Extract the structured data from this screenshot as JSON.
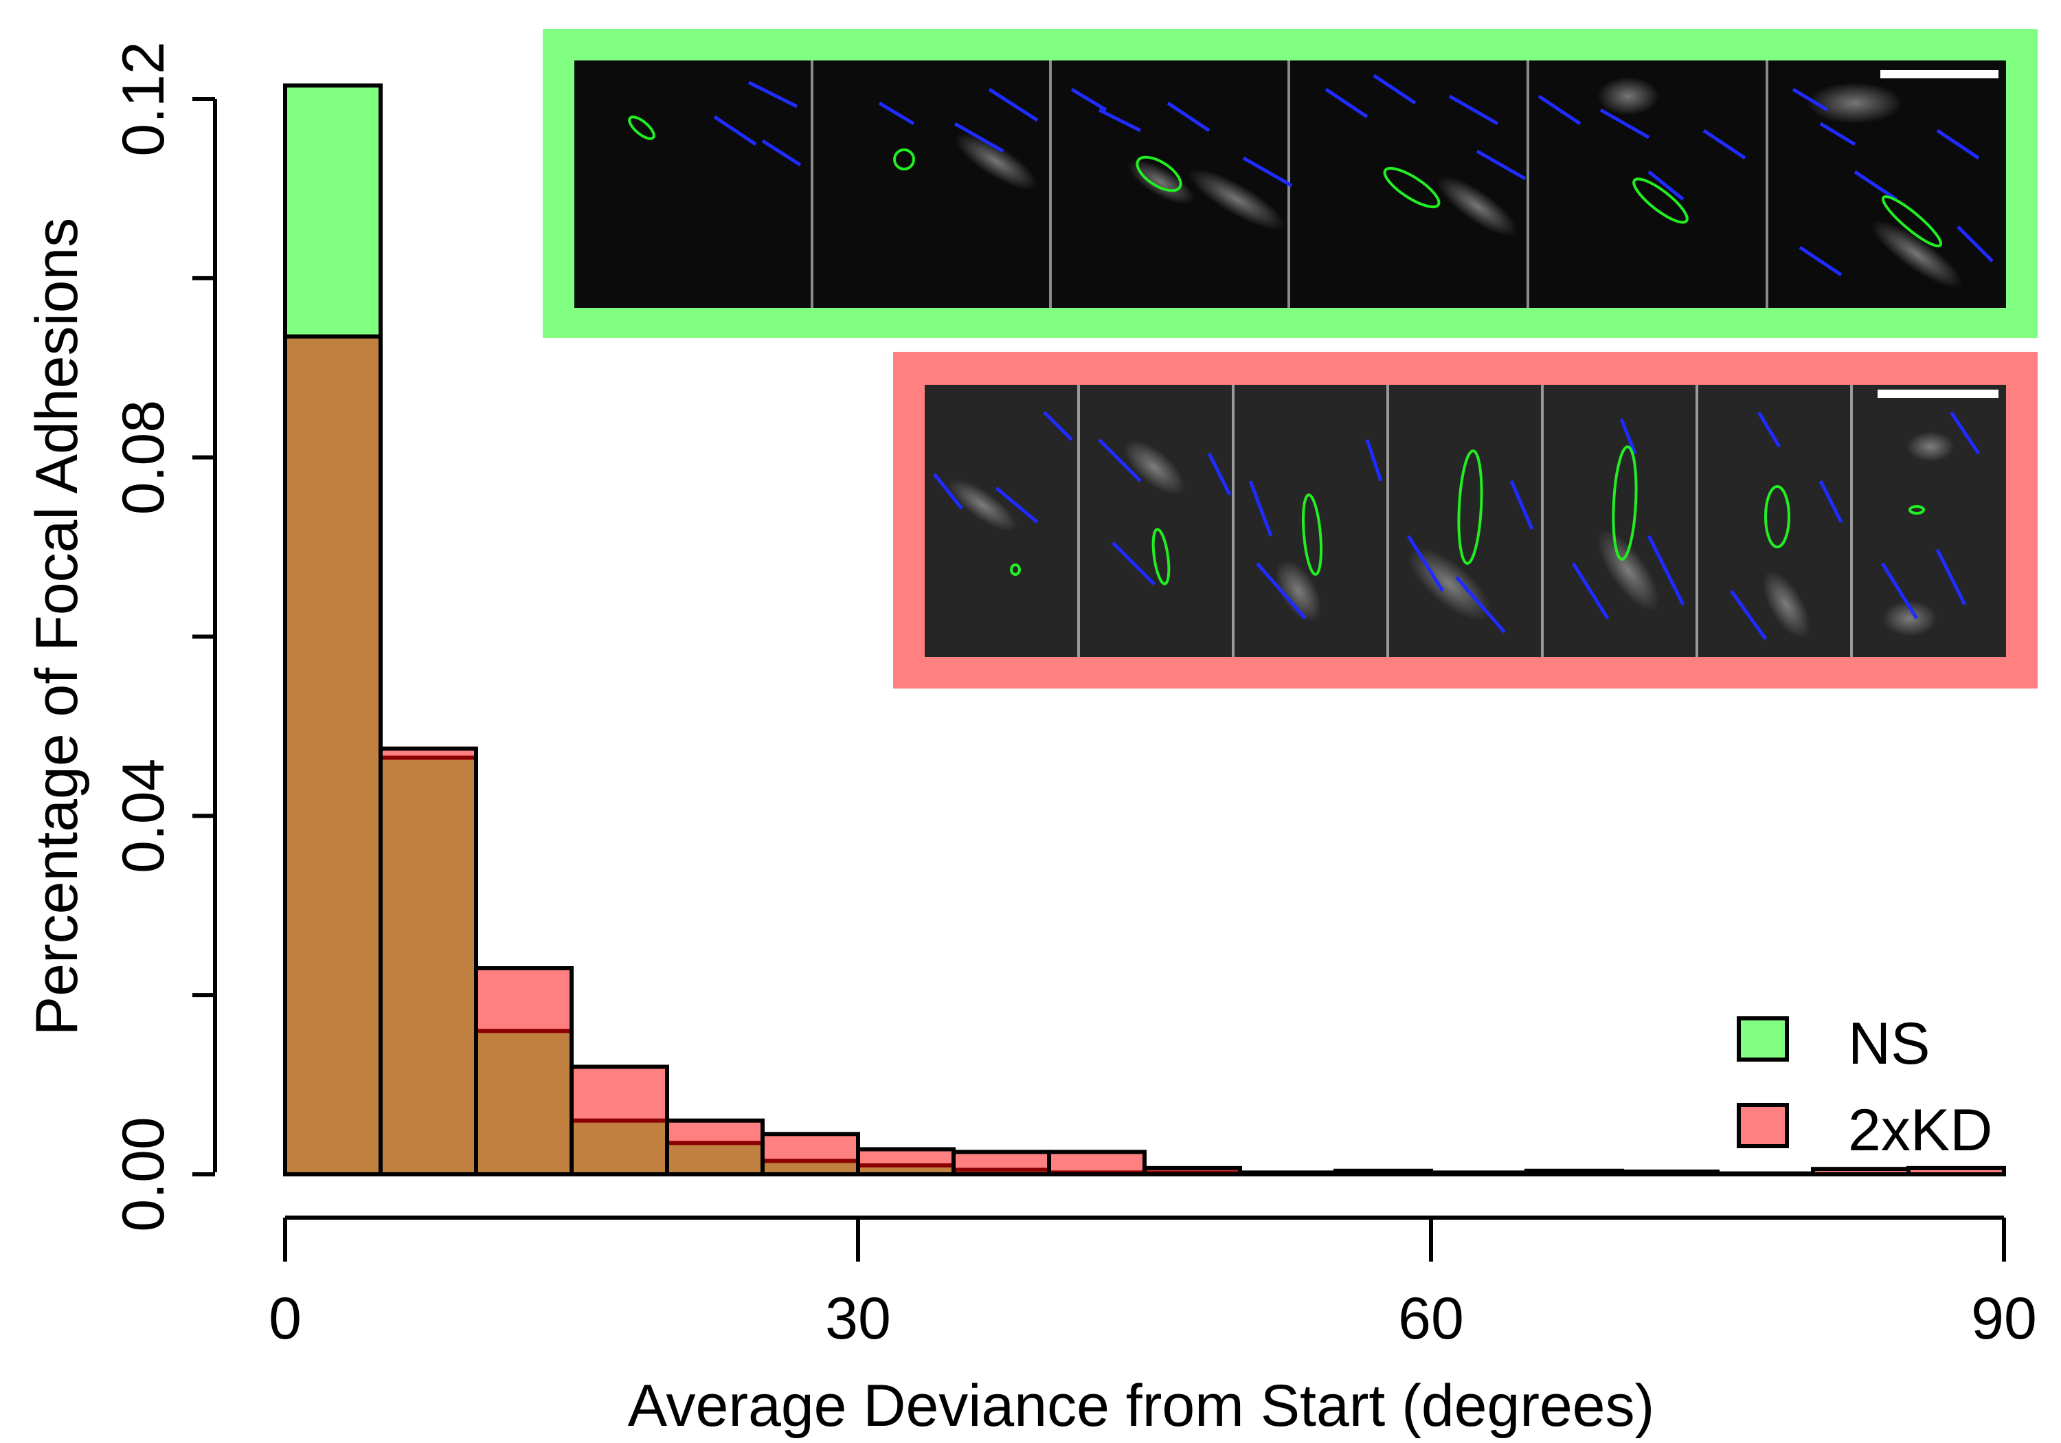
{
  "chart_data": {
    "type": "bar",
    "subtype": "overlapping-histogram",
    "xlabel": "Average Deviance from Start (degrees)",
    "ylabel": "Percentage of Focal Adhesions",
    "xlim": [
      0,
      90
    ],
    "ylim": [
      0,
      0.12
    ],
    "x_ticks": [
      0,
      30,
      60,
      90
    ],
    "y_ticks": [
      0.0,
      0.04,
      0.08,
      0.12
    ],
    "x_tick_labels": [
      "0",
      "30",
      "60",
      "90"
    ],
    "y_tick_labels": [
      "0.00",
      "0.04",
      "0.08",
      "0.12"
    ],
    "bin_width": 5,
    "bin_edges": [
      0,
      5,
      10,
      15,
      20,
      25,
      30,
      35,
      40,
      45,
      50,
      55,
      60,
      65,
      70,
      75,
      80,
      85,
      90
    ],
    "series": [
      {
        "name": "NS",
        "color": "#80ff80",
        "values": [
          0.1215,
          0.0465,
          0.016,
          0.006,
          0.0035,
          0.0015,
          0.001,
          0.0005,
          0.0002,
          0.0002,
          0.0,
          0.0,
          0.0,
          0.0,
          0.0,
          0.0,
          0.0,
          0.0
        ]
      },
      {
        "name": "2xKD",
        "color": "#ff8080",
        "values": [
          0.0935,
          0.0475,
          0.023,
          0.012,
          0.006,
          0.0045,
          0.0028,
          0.0025,
          0.0025,
          0.0007,
          0.0002,
          0.0004,
          0.0002,
          0.0004,
          0.0003,
          0.0001,
          0.0006,
          0.0007
        ]
      }
    ],
    "overlap_color": "#c08040",
    "legend": {
      "position": "bottom-right",
      "entries": [
        "NS",
        "2xKD"
      ]
    },
    "grid": false,
    "insets": [
      {
        "series": "NS",
        "border_color": "#80ff80",
        "frames": 6,
        "scale_bar": true
      },
      {
        "series": "2xKD",
        "border_color": "#ff8080",
        "frames": 7,
        "scale_bar": true
      }
    ]
  }
}
